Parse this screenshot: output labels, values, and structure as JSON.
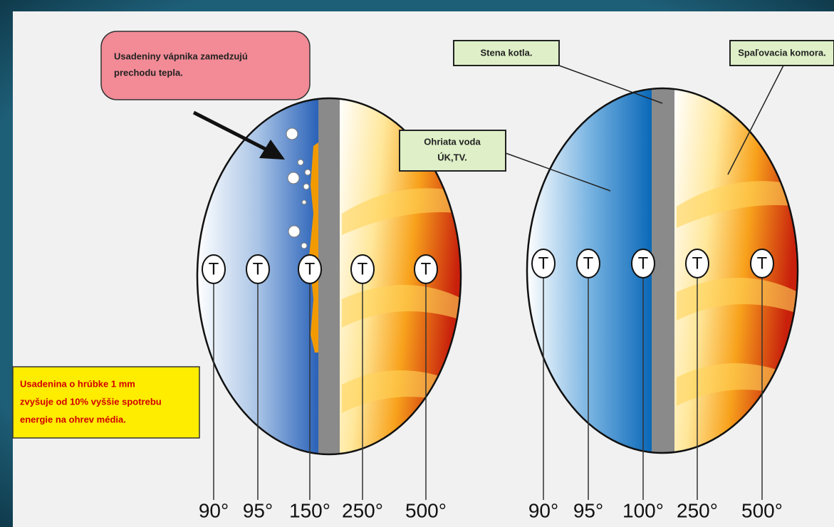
{
  "callout": {
    "lines": [
      "Usadeniny vápnika zamedzujú",
      "prechodu tepla."
    ]
  },
  "labels": {
    "wall": "Stena kotla.",
    "chamber": "Spaľovacia komora.",
    "water": [
      "Ohriata voda",
      "ÚK,TV."
    ]
  },
  "note": {
    "lines": [
      "Usadenina o hrúbke 1 mm",
      "zvyšuje od 10% vyššie spotrebu",
      "energie na ohrev média."
    ]
  },
  "diagrams": [
    {
      "sensors": [
        {
          "label": "T",
          "temp": "90°"
        },
        {
          "label": "T",
          "temp": "95°"
        },
        {
          "label": "T",
          "temp": "150°"
        },
        {
          "label": "T",
          "temp": "250°"
        },
        {
          "label": "T",
          "temp": "500°"
        }
      ]
    },
    {
      "sensors": [
        {
          "label": "T",
          "temp": "90°"
        },
        {
          "label": "T",
          "temp": "95°"
        },
        {
          "label": "T",
          "temp": "100°"
        },
        {
          "label": "T",
          "temp": "250°"
        },
        {
          "label": "T",
          "temp": "500°"
        }
      ]
    }
  ]
}
